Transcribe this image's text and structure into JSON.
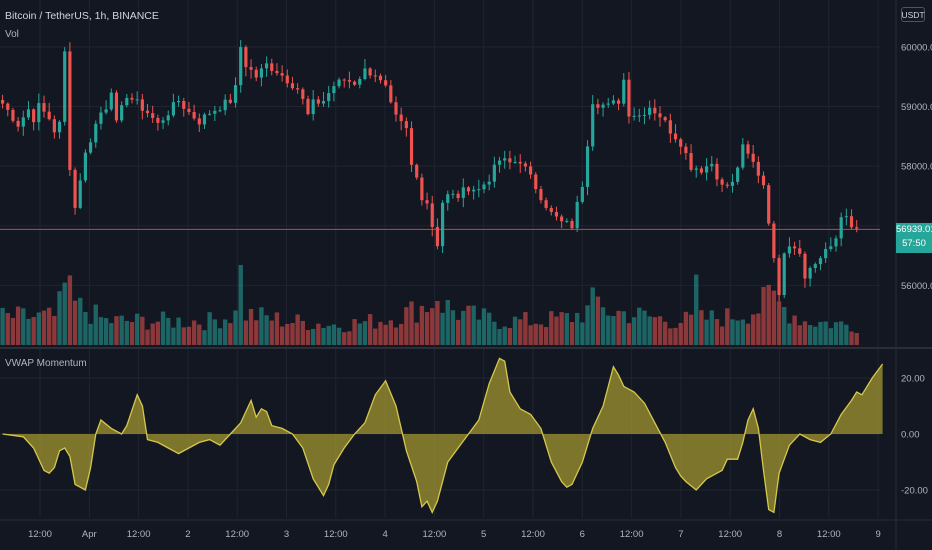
{
  "header": {
    "symbol": "Bitcoin / TetherUS, 1h, BINANCE",
    "volume_label": "Vol",
    "currency": "USDT"
  },
  "indicator": {
    "name": "VWAP Momentum"
  },
  "price_tag": {
    "price": "56939.01",
    "countdown": "57:50"
  },
  "colors": {
    "background": "#131722",
    "up": "#26a69a",
    "down": "#ef5350",
    "indicator_fill": "#a39531",
    "indicator_line": "#d4c84c",
    "grid": "#1f2430",
    "price_line": "#ef5350"
  },
  "price_axis": {
    "ticks": [
      "60000.00",
      "59000.00",
      "58000.00",
      "56000.00"
    ]
  },
  "momentum_axis": {
    "ticks": [
      "20.00",
      "0.00",
      "-20.00"
    ]
  },
  "time_axis": {
    "ticks": [
      "12:00",
      "Apr",
      "12:00",
      "2",
      "12:00",
      "3",
      "12:00",
      "4",
      "12:00",
      "5",
      "12:00",
      "6",
      "12:00",
      "7",
      "12:00",
      "8",
      "12:00",
      "9"
    ]
  },
  "chart_data": {
    "type": "candlestick",
    "price_ylim": [
      55000,
      60450
    ],
    "momentum_ylim": [
      -30,
      30
    ],
    "price_path": [
      [
        0,
        59050
      ],
      [
        3,
        58700
      ],
      [
        5,
        58950
      ],
      [
        6,
        58800
      ],
      [
        7,
        59000
      ],
      [
        9,
        58800
      ],
      [
        10,
        58600
      ],
      [
        11,
        58700
      ],
      [
        12,
        59900
      ],
      [
        13,
        58000
      ],
      [
        14,
        57300
      ],
      [
        15,
        57800
      ],
      [
        16,
        58200
      ],
      [
        18,
        58700
      ],
      [
        19,
        58900
      ],
      [
        20,
        59000
      ],
      [
        21,
        59300
      ],
      [
        22,
        58700
      ],
      [
        24,
        59200
      ],
      [
        26,
        59050
      ],
      [
        28,
        58900
      ],
      [
        30,
        58700
      ],
      [
        32,
        58900
      ],
      [
        34,
        59100
      ],
      [
        36,
        58900
      ],
      [
        38,
        58750
      ],
      [
        40,
        58900
      ],
      [
        42,
        59000
      ],
      [
        44,
        59100
      ],
      [
        45,
        59300
      ],
      [
        46,
        60000
      ],
      [
        47,
        59700
      ],
      [
        49,
        59500
      ],
      [
        51,
        59700
      ],
      [
        53,
        59600
      ],
      [
        55,
        59450
      ],
      [
        57,
        59300
      ],
      [
        58,
        59100
      ],
      [
        59,
        58850
      ],
      [
        60,
        59050
      ],
      [
        62,
        59100
      ],
      [
        64,
        59350
      ],
      [
        66,
        59450
      ],
      [
        68,
        59400
      ],
      [
        70,
        59600
      ],
      [
        72,
        59550
      ],
      [
        73,
        59400
      ],
      [
        74,
        59300
      ],
      [
        75,
        59000
      ],
      [
        76,
        58800
      ],
      [
        77,
        58700
      ],
      [
        78,
        58600
      ],
      [
        79,
        58000
      ],
      [
        80,
        57800
      ],
      [
        81,
        57500
      ],
      [
        82,
        57400
      ],
      [
        83,
        57000
      ],
      [
        84,
        56700
      ],
      [
        85,
        57400
      ],
      [
        86,
        57500
      ],
      [
        88,
        57500
      ],
      [
        90,
        57650
      ],
      [
        92,
        57600
      ],
      [
        94,
        57800
      ],
      [
        96,
        58100
      ],
      [
        98,
        58050
      ],
      [
        100,
        58100
      ],
      [
        102,
        57800
      ],
      [
        104,
        57500
      ],
      [
        106,
        57200
      ],
      [
        108,
        57050
      ],
      [
        110,
        57000
      ],
      [
        112,
        57700
      ],
      [
        113,
        58400
      ],
      [
        114,
        59100
      ],
      [
        115,
        59050
      ],
      [
        117,
        59000
      ],
      [
        119,
        59100
      ],
      [
        120,
        59450
      ],
      [
        121,
        58900
      ],
      [
        123,
        58850
      ],
      [
        125,
        59000
      ],
      [
        127,
        58850
      ],
      [
        129,
        58600
      ],
      [
        131,
        58400
      ],
      [
        133,
        58000
      ],
      [
        135,
        57950
      ],
      [
        137,
        58050
      ],
      [
        139,
        57650
      ],
      [
        141,
        57700
      ],
      [
        143,
        58300
      ],
      [
        145,
        58050
      ],
      [
        147,
        57700
      ],
      [
        148,
        57100
      ],
      [
        149,
        56400
      ],
      [
        150,
        55900
      ],
      [
        151,
        56600
      ],
      [
        152,
        56700
      ],
      [
        154,
        56600
      ],
      [
        155,
        56100
      ],
      [
        156,
        56300
      ],
      [
        158,
        56450
      ],
      [
        160,
        56650
      ],
      [
        161,
        56800
      ],
      [
        162,
        57200
      ],
      [
        163,
        57100
      ],
      [
        164,
        56950
      ]
    ],
    "volume_path": [
      [
        0,
        0.35
      ],
      [
        10,
        0.35
      ],
      [
        13,
        0.75
      ],
      [
        14,
        0.5
      ],
      [
        20,
        0.3
      ],
      [
        30,
        0.3
      ],
      [
        40,
        0.3
      ],
      [
        46,
        0.4
      ],
      [
        55,
        0.3
      ],
      [
        65,
        0.25
      ],
      [
        72,
        0.3
      ],
      [
        76,
        0.35
      ],
      [
        80,
        0.45
      ],
      [
        84,
        0.55
      ],
      [
        88,
        0.4
      ],
      [
        96,
        0.3
      ],
      [
        104,
        0.3
      ],
      [
        110,
        0.35
      ],
      [
        114,
        0.45
      ],
      [
        120,
        0.4
      ],
      [
        130,
        0.3
      ],
      [
        140,
        0.35
      ],
      [
        146,
        0.45
      ],
      [
        148,
        0.6
      ],
      [
        150,
        0.5
      ],
      [
        155,
        0.3
      ],
      [
        164,
        0.25
      ]
    ],
    "volume_spikes": [
      [
        12,
        0.78
      ],
      [
        13,
        0.87
      ],
      [
        46,
        1.0
      ],
      [
        84,
        0.55
      ],
      [
        114,
        0.72
      ],
      [
        134,
        0.88
      ],
      [
        149,
        0.68
      ]
    ],
    "momentum_path": [
      [
        0,
        0
      ],
      [
        4,
        -1
      ],
      [
        6,
        -5
      ],
      [
        8,
        -13
      ],
      [
        9,
        -14
      ],
      [
        10,
        -12
      ],
      [
        11,
        -6
      ],
      [
        12,
        -5
      ],
      [
        13,
        -8
      ],
      [
        14,
        -18
      ],
      [
        16,
        -20
      ],
      [
        17,
        -12
      ],
      [
        18,
        0
      ],
      [
        19,
        5
      ],
      [
        21,
        2
      ],
      [
        23,
        0
      ],
      [
        24,
        3
      ],
      [
        26,
        14
      ],
      [
        27,
        10
      ],
      [
        28,
        -2
      ],
      [
        30,
        -3
      ],
      [
        32,
        -5
      ],
      [
        34,
        -7
      ],
      [
        36,
        -5
      ],
      [
        38,
        -3
      ],
      [
        40,
        -2
      ],
      [
        42,
        -4
      ],
      [
        44,
        0
      ],
      [
        46,
        4
      ],
      [
        48,
        12
      ],
      [
        49,
        6
      ],
      [
        50,
        9
      ],
      [
        51,
        8
      ],
      [
        52,
        3
      ],
      [
        54,
        2
      ],
      [
        56,
        0
      ],
      [
        58,
        -5
      ],
      [
        60,
        -16
      ],
      [
        62,
        -22
      ],
      [
        63,
        -18
      ],
      [
        64,
        -11
      ],
      [
        66,
        -5
      ],
      [
        68,
        0
      ],
      [
        70,
        4
      ],
      [
        72,
        14
      ],
      [
        74,
        19
      ],
      [
        76,
        10
      ],
      [
        77,
        2
      ],
      [
        78,
        -6
      ],
      [
        80,
        -17
      ],
      [
        81,
        -26
      ],
      [
        82,
        -24
      ],
      [
        83,
        -28
      ],
      [
        84,
        -24
      ],
      [
        86,
        -10
      ],
      [
        88,
        -5
      ],
      [
        90,
        0
      ],
      [
        92,
        5
      ],
      [
        94,
        18
      ],
      [
        96,
        27
      ],
      [
        97,
        26
      ],
      [
        98,
        15
      ],
      [
        100,
        9
      ],
      [
        102,
        7
      ],
      [
        104,
        2
      ],
      [
        106,
        -10
      ],
      [
        108,
        -17
      ],
      [
        109,
        -19
      ],
      [
        110,
        -18
      ],
      [
        112,
        -10
      ],
      [
        114,
        2
      ],
      [
        116,
        10
      ],
      [
        118,
        24
      ],
      [
        119,
        21
      ],
      [
        120,
        17
      ],
      [
        122,
        15
      ],
      [
        124,
        11
      ],
      [
        126,
        4
      ],
      [
        128,
        -3
      ],
      [
        130,
        -12
      ],
      [
        131,
        -15
      ],
      [
        132,
        -17
      ],
      [
        134,
        -20
      ],
      [
        136,
        -16
      ],
      [
        138,
        -14
      ],
      [
        139,
        -13
      ],
      [
        140,
        -9
      ],
      [
        142,
        -9
      ],
      [
        143,
        -3
      ],
      [
        144,
        5
      ],
      [
        145,
        9
      ],
      [
        146,
        2
      ],
      [
        147,
        -13
      ],
      [
        148,
        -27
      ],
      [
        149,
        -28
      ],
      [
        150,
        -14
      ],
      [
        152,
        -4
      ],
      [
        154,
        0
      ],
      [
        156,
        -2
      ],
      [
        158,
        -3
      ],
      [
        160,
        0
      ],
      [
        162,
        7
      ],
      [
        164,
        12
      ],
      [
        165,
        15
      ],
      [
        166,
        14
      ],
      [
        168,
        20
      ],
      [
        170,
        25
      ]
    ],
    "title": "Bitcoin / TetherUS, 1h, BINANCE",
    "series": [
      {
        "name": "Vol"
      },
      {
        "name": "VWAP Momentum"
      }
    ],
    "grid": true,
    "current_price": 56939.01
  }
}
